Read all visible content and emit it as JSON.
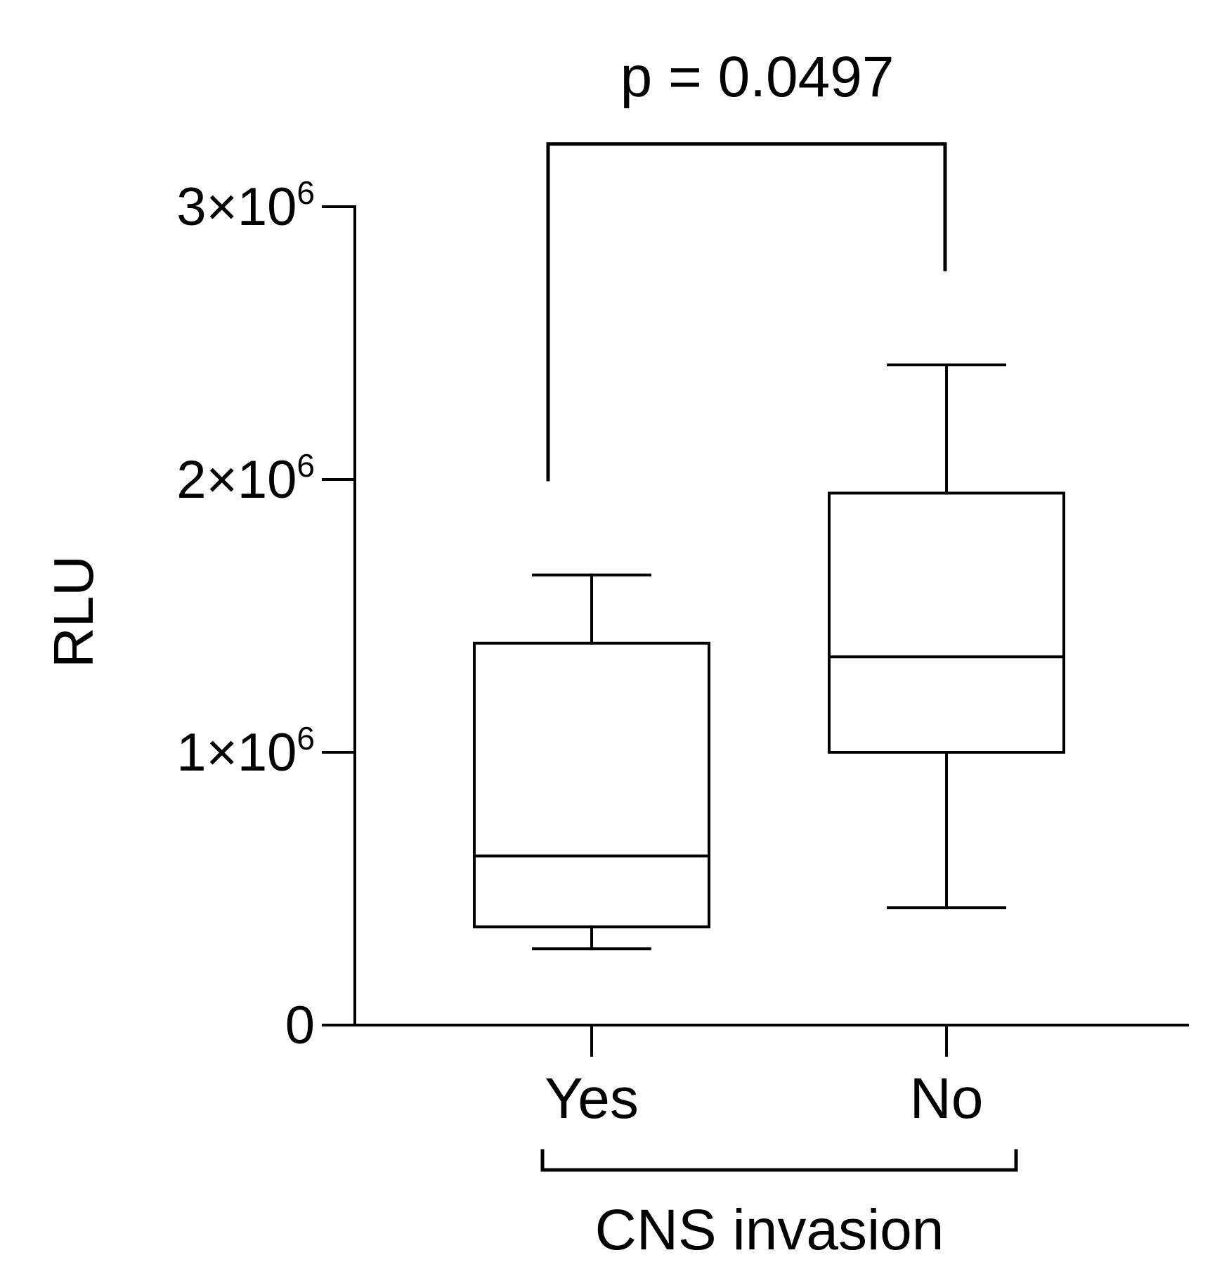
{
  "chart_data": {
    "type": "box",
    "title": "",
    "ylabel": "RLU",
    "xlabel": "CNS invasion",
    "ylim": [
      0,
      3000000
    ],
    "yticks": [
      {
        "value": 0,
        "mantissa": "0",
        "exponent": ""
      },
      {
        "value": 1000000,
        "mantissa": "1×10",
        "exponent": "6"
      },
      {
        "value": 2000000,
        "mantissa": "2×10",
        "exponent": "6"
      },
      {
        "value": 3000000,
        "mantissa": "3×10",
        "exponent": "6"
      }
    ],
    "categories": [
      "Yes",
      "No"
    ],
    "boxes": [
      {
        "category": "Yes",
        "min": 280000,
        "q1": 360000,
        "median": 620000,
        "q3": 1400000,
        "max": 1650000
      },
      {
        "category": "No",
        "min": 430000,
        "q1": 1000000,
        "median": 1350000,
        "q3": 1950000,
        "max": 2420000
      }
    ],
    "grid": false,
    "annotations": [
      {
        "type": "significance",
        "text": "p = 0.0497",
        "between": [
          "Yes",
          "No"
        ],
        "left_end": 2000000,
        "right_end": 2770000,
        "bar_level": 3230000
      }
    ]
  }
}
